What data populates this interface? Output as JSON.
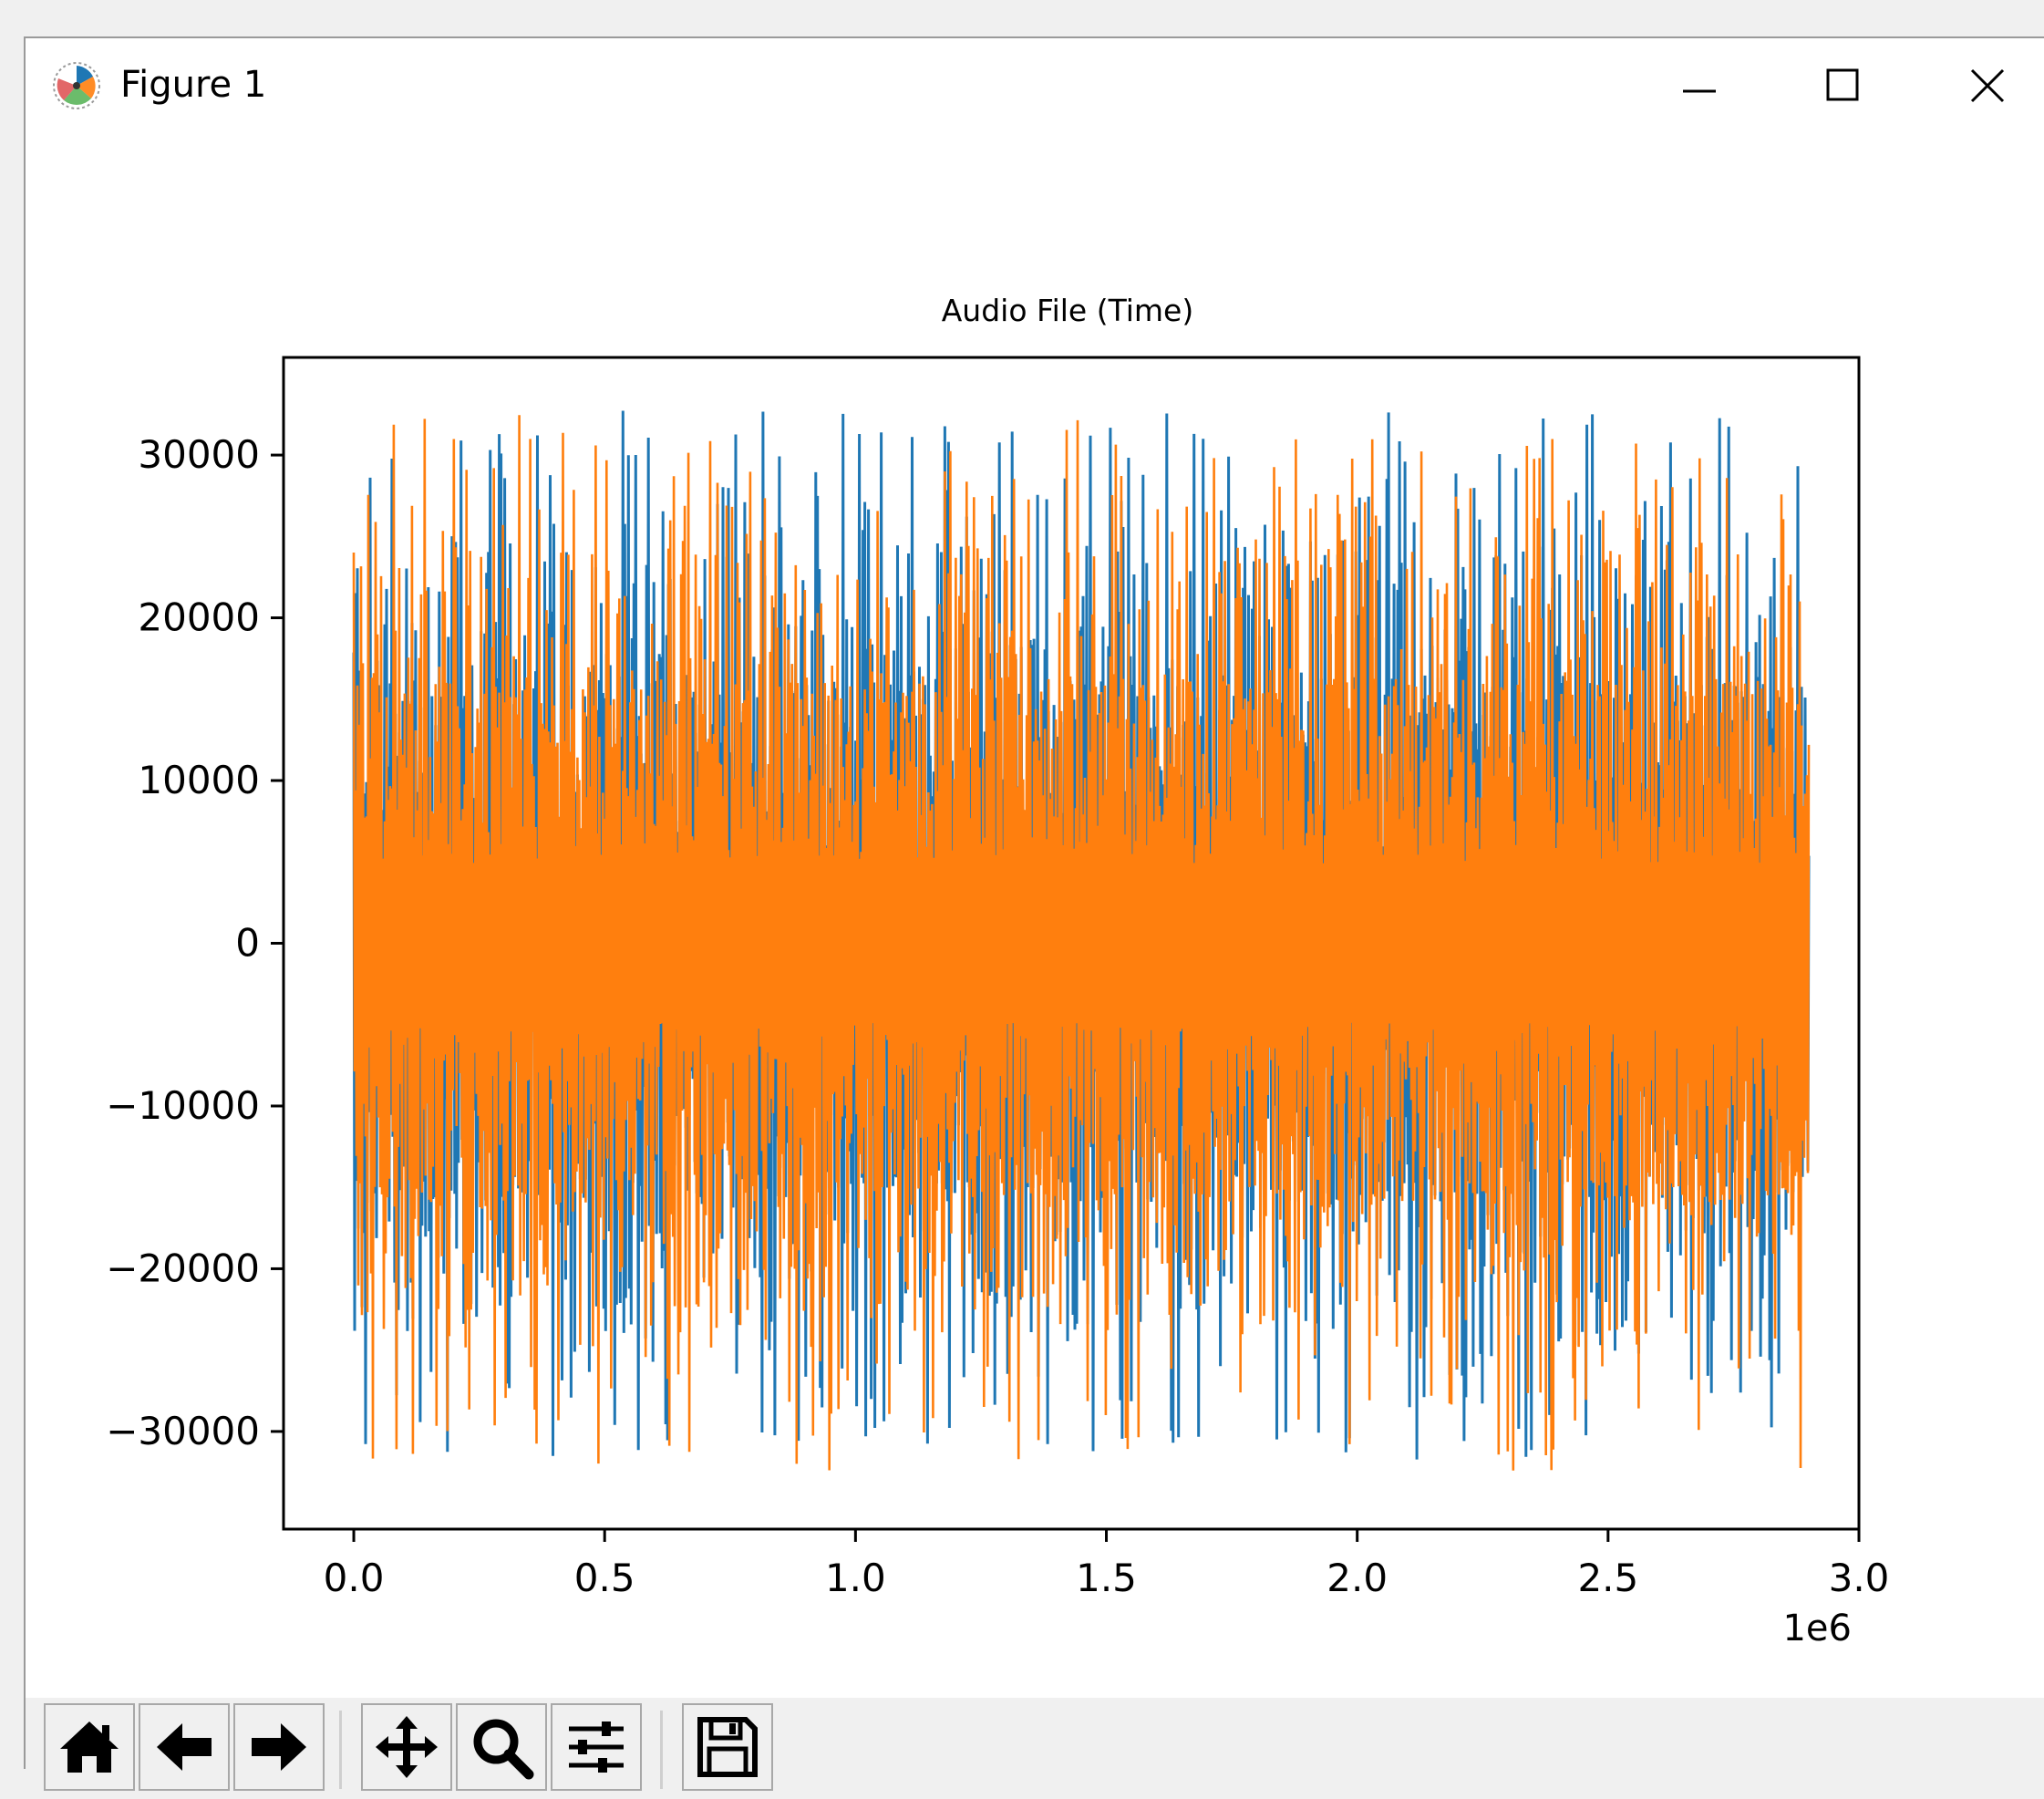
{
  "window": {
    "title": "Figure 1",
    "icon": "matplotlib-logo-icon",
    "controls": [
      "minimize-icon",
      "maximize-icon",
      "close-icon"
    ]
  },
  "chart_data": {
    "type": "line",
    "title": "Audio File (Time)",
    "xlabel": "",
    "ylabel": "",
    "x_offset_label": "1e6",
    "xlim": [
      -0.14,
      3.0
    ],
    "ylim": [
      -36000,
      36000
    ],
    "x_ticks": [
      0.0,
      0.5,
      1.0,
      1.5,
      2.0,
      2.5,
      3.0
    ],
    "x_tick_labels": [
      "0.0",
      "0.5",
      "1.0",
      "1.5",
      "2.0",
      "2.5",
      "3.0"
    ],
    "y_ticks": [
      30000,
      20000,
      10000,
      0,
      -10000,
      -20000,
      -30000
    ],
    "y_tick_labels": [
      "30000",
      "20000",
      "10000",
      "0",
      "−10000",
      "−20000",
      "−30000"
    ],
    "x_range": [
      0.0,
      2.9
    ],
    "grid": false,
    "legend": "none",
    "series": [
      {
        "color": "#1f77b4",
        "amplitude_max": 33000,
        "amplitude_min": -31800
      },
      {
        "color": "#ff7f0e",
        "amplitude_max": 32500,
        "amplitude_min": -32500
      }
    ]
  },
  "toolbar": {
    "buttons": [
      {
        "name": "home-button",
        "icon": "home-icon"
      },
      {
        "name": "back-button",
        "icon": "arrow-left-icon"
      },
      {
        "name": "forward-button",
        "icon": "arrow-right-icon"
      },
      {
        "name": "pan-button",
        "icon": "move-icon"
      },
      {
        "name": "zoom-button",
        "icon": "magnifier-icon"
      },
      {
        "name": "configure-subplots-button",
        "icon": "sliders-icon"
      },
      {
        "name": "save-button",
        "icon": "floppy-disk-icon"
      }
    ]
  }
}
